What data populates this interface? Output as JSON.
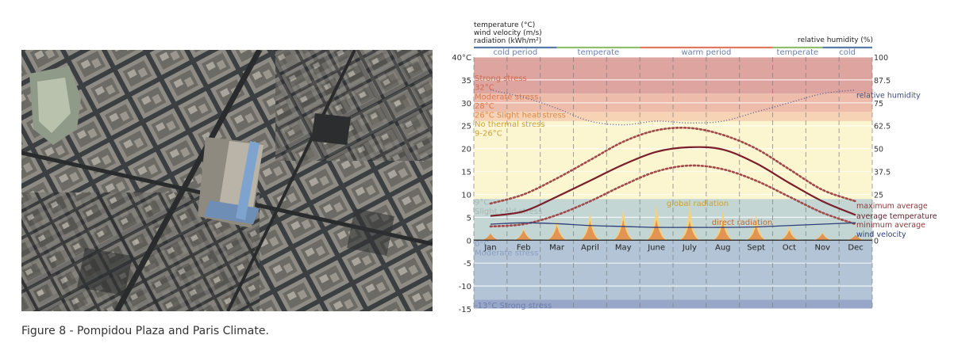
{
  "caption": "Figure 8 - Pompidou Plaza and Paris Climate.",
  "aerial_photo": {
    "description_icon": "aerial-city-photo"
  },
  "chart_data": {
    "type": "line",
    "left_axis_titles": [
      "temperature (°C)",
      "wind velocity (m/s)",
      "radiation (kWh/m²)"
    ],
    "right_axis_title": "relative humidity (%)",
    "months": [
      "Jan",
      "Feb",
      "Mar",
      "April",
      "May",
      "June",
      "July",
      "Aug",
      "Sept",
      "Oct",
      "Nov",
      "Dec"
    ],
    "y_left": {
      "min": -15,
      "max": 40,
      "ticks": [
        40,
        35,
        30,
        25,
        20,
        15,
        10,
        5,
        0,
        -5,
        -10,
        -15
      ],
      "top_label": "40°C"
    },
    "y_right": {
      "min": 0,
      "max": 100,
      "ticks": [
        100,
        87.5,
        75,
        62.5,
        50,
        37.5,
        25,
        0
      ]
    },
    "periods": [
      {
        "label": "cold period",
        "from": 0,
        "to": 2.5,
        "color": "#5a7aa8"
      },
      {
        "label": "temperate",
        "from": 2.5,
        "to": 5,
        "color": "#8fbf6a"
      },
      {
        "label": "warm period",
        "from": 5,
        "to": 9,
        "color": "#e07a5f"
      },
      {
        "label": "temperate",
        "from": 9,
        "to": 10.5,
        "color": "#8fbf6a"
      },
      {
        "label": "cold",
        "from": 10.5,
        "to": 12,
        "color": "#5a7aa8"
      }
    ],
    "stress_bands": [
      {
        "label": "Strong stress",
        "from": 32,
        "to": 40,
        "color": "#dea5a0"
      },
      {
        "label": "Moderate stress",
        "from": 28,
        "to": 32,
        "color": "#eebcaa"
      },
      {
        "label": "Slight heat stress",
        "from": 26,
        "to": 28,
        "color": "#f6d3b4"
      },
      {
        "label": "No thermal stress",
        "from": 9,
        "to": 26,
        "color": "#fbf5d0"
      },
      {
        "label": "Slight cold stress",
        "from": 0,
        "to": 9,
        "color": "#c3d6d4"
      },
      {
        "label": "Moderate stress",
        "from": -13,
        "to": 0,
        "color": "#b2c4d5"
      },
      {
        "label": "Strong stress",
        "from": -15,
        "to": -13,
        "color": "#98a6c8"
      }
    ],
    "band_labels": [
      {
        "text": "Strong stress",
        "y": 35.3,
        "color": "#d06a4e"
      },
      {
        "text": "32°C",
        "y": 33.3,
        "color": "#d06a4e"
      },
      {
        "text": "Moderate stress",
        "y": 31.3,
        "color": "#d87a4e"
      },
      {
        "text": "28°C",
        "y": 29.3,
        "color": "#d87a4e"
      },
      {
        "text": "26°C Slight heat stress",
        "y": 27.3,
        "color": "#dc8a4a"
      },
      {
        "text": "No thermal stress",
        "y": 25.3,
        "color": "#caa23a"
      },
      {
        "text": "9-26°C",
        "y": 23.3,
        "color": "#caa23a"
      },
      {
        "text": "9°C",
        "y": 8.3,
        "color": "#a8b7b0"
      },
      {
        "text": "Slight cold stress",
        "y": 6.3,
        "color": "#a8b7b0"
      },
      {
        "text": "0°C",
        "y": -0.8,
        "color": "#8a9fc0"
      },
      {
        "text": "Moderate stress",
        "y": -2.8,
        "color": "#8a9fc0"
      },
      {
        "text": "-13°C Strong stress",
        "y": -14.3,
        "color": "#6a7db0"
      }
    ],
    "series": [
      {
        "name": "maximum average",
        "style": "dotted",
        "color": "#a04a4a",
        "values": [
          8,
          10,
          13.5,
          17.5,
          21.5,
          24,
          24.5,
          23,
          20,
          15.5,
          11,
          8.5
        ]
      },
      {
        "name": "average temperature",
        "style": "solid",
        "color": "#7a1f2a",
        "values": [
          5.3,
          6.3,
          9.5,
          13,
          16.5,
          19.3,
          20.3,
          19.8,
          16.8,
          12.5,
          8.5,
          5.5
        ]
      },
      {
        "name": "minimum average",
        "style": "dotted",
        "color": "#a04a4a",
        "values": [
          3,
          3.5,
          5.5,
          8.5,
          12,
          15,
          16.3,
          15.5,
          13,
          9.5,
          6,
          3.5
        ]
      },
      {
        "name": "wind velocity",
        "style": "solid",
        "color": "#2f3f7a",
        "values": [
          3.5,
          3.8,
          3.6,
          3.2,
          3.0,
          2.8,
          2.8,
          2.8,
          2.9,
          3.2,
          3.5,
          3.8
        ]
      },
      {
        "name": "relative humidity",
        "style": "dotted-thin",
        "color": "#5a5f8a",
        "values_right_axis": [
          82,
          78,
          72,
          65,
          63,
          65,
          64,
          65,
          70,
          75,
          80,
          82
        ]
      }
    ],
    "global_radiation": {
      "name": "global radiation",
      "color": "#f4d27a",
      "values": [
        1.5,
        2.7,
        4.5,
        6.2,
        7,
        7.8,
        7.8,
        6.5,
        5.5,
        3.2,
        1.8,
        1.2
      ]
    },
    "direct_radiation": {
      "name": "direct radiation",
      "color": "#e09050",
      "values": [
        1.5,
        2.2,
        3.2,
        4.2,
        4.5,
        4.5,
        4.2,
        3.8,
        3.2,
        2.2,
        1.5,
        1.2
      ]
    },
    "inline_labels": {
      "global_radiation": "global radiation",
      "direct_radiation": "direct radiation"
    },
    "right_legend": [
      "maximum average",
      "average temperature",
      "minimum average",
      "wind velocity"
    ],
    "relative_humidity_label": "relative humidity"
  }
}
